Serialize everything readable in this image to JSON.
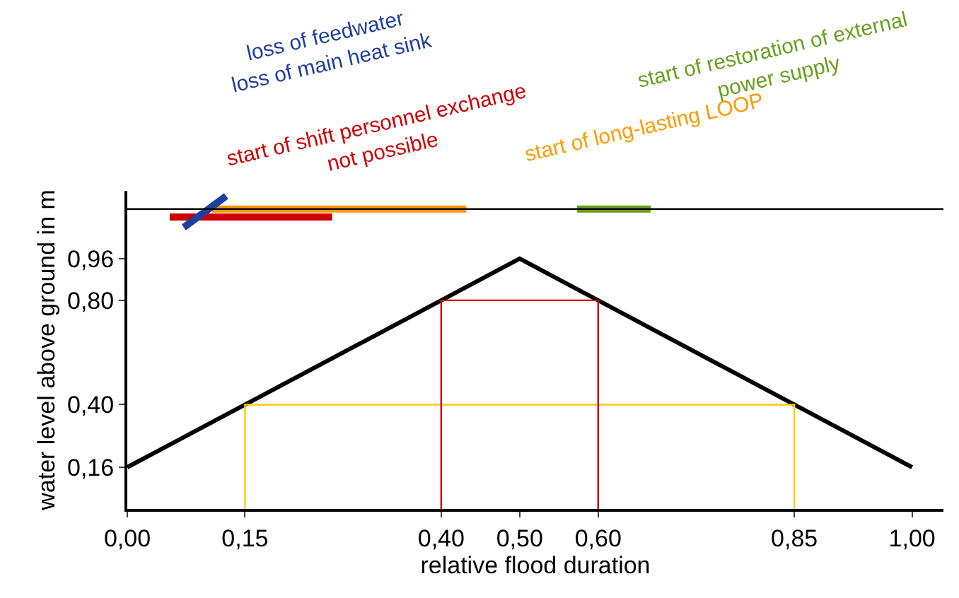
{
  "chart_data": {
    "type": "line",
    "xlabel": "relative flood duration",
    "ylabel": "water level above ground in m",
    "xlim": [
      0,
      1.04
    ],
    "ylim": [
      0,
      1.22
    ],
    "xticks": [
      {
        "value": 0,
        "label": "0,00"
      },
      {
        "value": 0.15,
        "label": "0,15"
      },
      {
        "value": 0.4,
        "label": "0,40"
      },
      {
        "value": 0.5,
        "label": "0,50"
      },
      {
        "value": 0.6,
        "label": "0,60"
      },
      {
        "value": 0.85,
        "label": "0,85"
      },
      {
        "value": 1,
        "label": "1,00"
      }
    ],
    "yticks": [
      {
        "value": 0.16,
        "label": "0,16"
      },
      {
        "value": 0.4,
        "label": "0,40"
      },
      {
        "value": 0.8,
        "label": "0,80"
      },
      {
        "value": 0.96,
        "label": "0,96"
      }
    ],
    "legend": false,
    "marker": "none",
    "line_style": "solid",
    "ref_lines": [
      {
        "axis": "y",
        "value": 1.15,
        "color": "#000000"
      }
    ],
    "series": [
      {
        "color": "#000000",
        "x": [
          0,
          0.5,
          1
        ],
        "values": [
          0.16,
          0.96,
          0.16
        ]
      },
      {
        "color": "#ffcc00",
        "x": [
          0.15,
          0.15,
          0.85,
          0.85
        ],
        "values": [
          0,
          0.4,
          0.4,
          0
        ]
      },
      {
        "color": "#cc0000",
        "x": [
          0.4,
          0.4,
          0.6,
          0.6
        ],
        "values": [
          0,
          0.8,
          0.8,
          0
        ]
      },
      {
        "name": "start of shift personnel exchange\nnot possible",
        "color": "#cc0000",
        "x": [
          0.054,
          0.261
        ],
        "values": [
          1.12,
          1.12
        ]
      },
      {
        "name": "start of long-lasting LOOP",
        "color": "#ff9900",
        "x": [
          0.108,
          0.432
        ],
        "values": [
          1.15,
          1.15
        ]
      },
      {
        "name": "start of restoration of external\npower supply",
        "color": "#66a01e",
        "x": [
          0.573,
          0.667
        ],
        "values": [
          1.15,
          1.15
        ]
      },
      {
        "name": "loss of feedwater\nloss of main heat sink",
        "color": "#1f3f9f",
        "x": [
          0.072,
          0.126
        ],
        "values": [
          1.08,
          1.2
        ]
      }
    ]
  }
}
